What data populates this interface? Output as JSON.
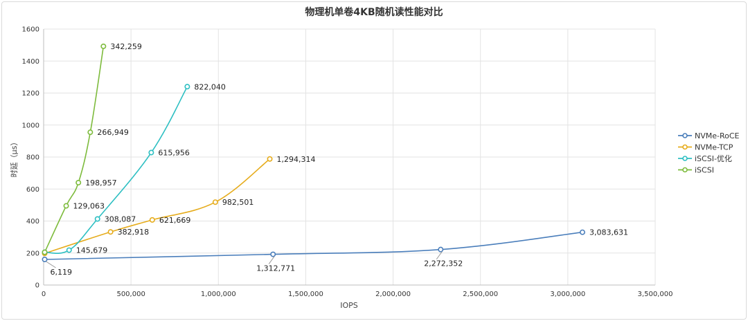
{
  "chart_data": {
    "type": "line",
    "title": "物理机单卷4KB随机读性能对比",
    "xlabel": "IOPS",
    "ylabel": "时延（μs）",
    "xlim": [
      0,
      3500000
    ],
    "ylim": [
      0,
      1600
    ],
    "x_ticks": [
      0,
      500000,
      1000000,
      1500000,
      2000000,
      2500000,
      3000000,
      3500000
    ],
    "x_tick_labels": [
      "0",
      "500,000",
      "1,000,000",
      "1,500,000",
      "2,000,000",
      "2,500,000",
      "3,000,000",
      "3,500,000"
    ],
    "y_ticks": [
      0,
      200,
      400,
      600,
      800,
      1000,
      1200,
      1400,
      1600
    ],
    "y_tick_labels": [
      "0",
      "200",
      "400",
      "600",
      "800",
      "1000",
      "1200",
      "1400",
      "1600"
    ],
    "grid": true,
    "legend_position": "right",
    "series": [
      {
        "name": "NVMe-RoCE",
        "color": "#4a7ebb",
        "points": [
          {
            "x": 6119,
            "y": 160,
            "label": "6,119"
          },
          {
            "x": 1312771,
            "y": 192,
            "label": "1,312,771"
          },
          {
            "x": 2272352,
            "y": 222,
            "label": "2,272,352"
          },
          {
            "x": 3083631,
            "y": 330,
            "label": "3,083,631"
          }
        ]
      },
      {
        "name": "NVMe-TCP",
        "color": "#e6ac1c",
        "points": [
          {
            "x": 6119,
            "y": 198,
            "label": ""
          },
          {
            "x": 382918,
            "y": 332,
            "label": "382,918"
          },
          {
            "x": 621669,
            "y": 407,
            "label": "621,669"
          },
          {
            "x": 982501,
            "y": 518,
            "label": "982,501"
          },
          {
            "x": 1294314,
            "y": 788,
            "label": "1,294,314"
          }
        ]
      },
      {
        "name": "iSCSI-优化",
        "color": "#2dbfc2",
        "points": [
          {
            "x": 6119,
            "y": 205,
            "label": ""
          },
          {
            "x": 145679,
            "y": 218,
            "label": "145,679"
          },
          {
            "x": 308087,
            "y": 413,
            "label": "308,087"
          },
          {
            "x": 615956,
            "y": 828,
            "label": "615,956"
          },
          {
            "x": 822040,
            "y": 1240,
            "label": "822,040"
          }
        ]
      },
      {
        "name": "iSCSI",
        "color": "#7dbb3c",
        "points": [
          {
            "x": 6119,
            "y": 205,
            "label": ""
          },
          {
            "x": 129063,
            "y": 495,
            "label": "129,063"
          },
          {
            "x": 198957,
            "y": 640,
            "label": "198,957"
          },
          {
            "x": 266949,
            "y": 955,
            "label": "266,949"
          },
          {
            "x": 342259,
            "y": 1492,
            "label": "342,259"
          }
        ]
      }
    ]
  }
}
